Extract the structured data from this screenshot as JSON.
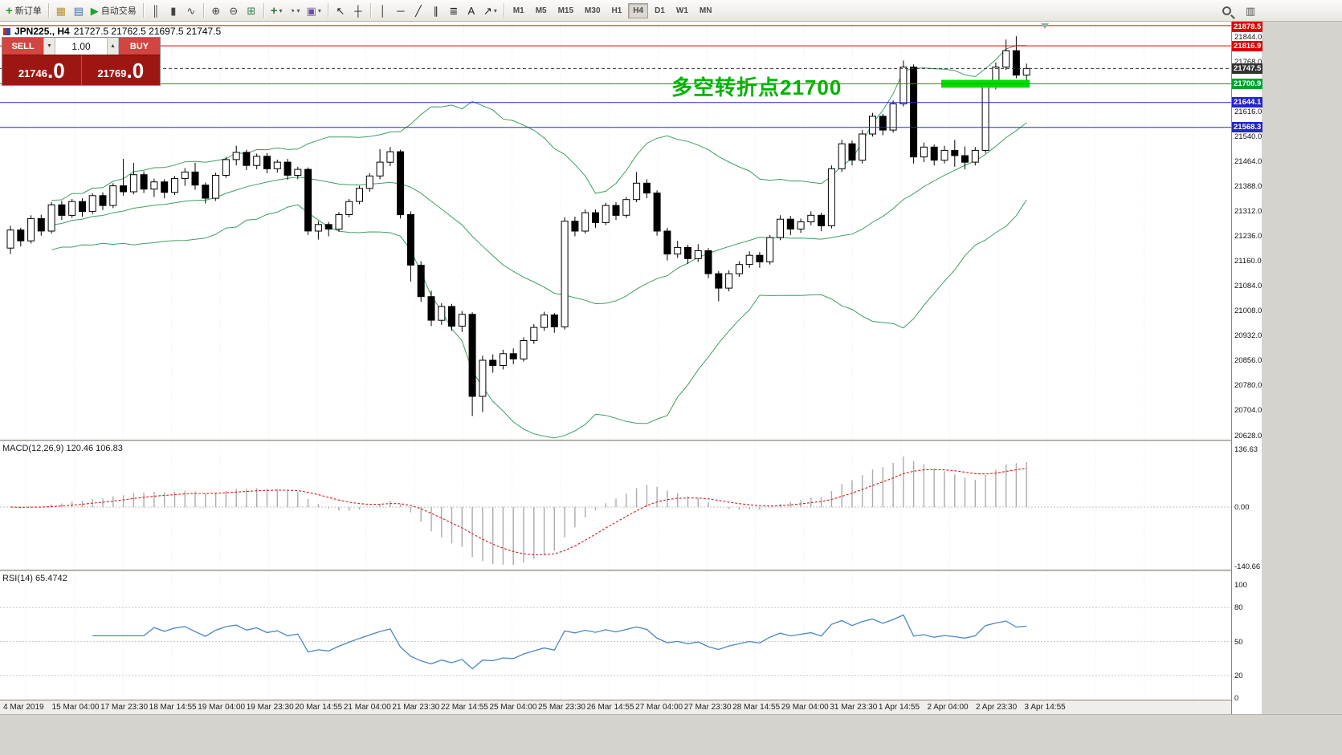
{
  "toolbar": {
    "dropdown_glyph": "▾",
    "left_groups": [
      [
        {
          "name": "new-order-button",
          "glyph": "+",
          "color": "#1fa32e",
          "label": "新订单"
        }
      ],
      [
        {
          "name": "charts-window-button",
          "glyph": "▦",
          "color": "#b8912a"
        },
        {
          "name": "data-window-button",
          "glyph": "▤",
          "color": "#3b6fb5"
        },
        {
          "name": "autotrading-button",
          "glyph": "▶",
          "color": "#1fa32e",
          "label": "自动交易"
        }
      ],
      [
        {
          "name": "bar-chart-type-button",
          "glyph": "║",
          "color": "#444"
        },
        {
          "name": "candlestick-type-button",
          "glyph": "▮",
          "color": "#444"
        },
        {
          "name": "line-chart-type-button",
          "glyph": "∿",
          "color": "#444"
        }
      ],
      [
        {
          "name": "zoom-in-button",
          "glyph": "⊕",
          "color": "#444"
        },
        {
          "name": "zoom-out-button",
          "glyph": "⊖",
          "color": "#444"
        },
        {
          "name": "tile-windows-button",
          "glyph": "⊞",
          "color": "#2a7f3f"
        }
      ],
      [
        {
          "name": "indicators-button",
          "glyph": "+",
          "color": "#2a7f3f",
          "dropdown": true
        },
        {
          "name": "periods-button",
          "glyph": "◔",
          "color": "#444",
          "dropdown": true
        },
        {
          "name": "templates-button",
          "glyph": "▣",
          "color": "#6a4fa0",
          "dropdown": true
        }
      ],
      [
        {
          "name": "cursor-button",
          "glyph": "↖",
          "color": "#222"
        },
        {
          "name": "crosshair-button",
          "glyph": "┼",
          "color": "#222"
        }
      ],
      [
        {
          "name": "vertical-line-button",
          "glyph": "│",
          "color": "#222"
        },
        {
          "name": "horizontal-line-button",
          "glyph": "─",
          "color": "#222"
        },
        {
          "name": "trendline-button",
          "glyph": "╱",
          "color": "#222"
        },
        {
          "name": "channel-button",
          "glyph": "∥",
          "color": "#222"
        },
        {
          "name": "fibonacci-button",
          "glyph": "≣",
          "color": "#222"
        },
        {
          "name": "text-label-button",
          "glyph": "A",
          "color": "#222"
        },
        {
          "name": "arrows-button",
          "glyph": "↗",
          "color": "#222",
          "dropdown": true
        }
      ]
    ],
    "timeframes": [
      {
        "label": "M1"
      },
      {
        "label": "M5"
      },
      {
        "label": "M15"
      },
      {
        "label": "M30"
      },
      {
        "label": "H1"
      },
      {
        "label": "H4",
        "active": true
      },
      {
        "label": "D1"
      },
      {
        "label": "W1"
      },
      {
        "label": "MN"
      }
    ],
    "right_items": [
      {
        "name": "search-button",
        "type": "mag"
      },
      {
        "name": "chart-pages-button",
        "glyph": "▥",
        "color": "#555"
      }
    ]
  },
  "title": {
    "symbol_period": "JPN225., H4",
    "ohlc": "21727.5 21762.5 21697.5 21747.5"
  },
  "trade_panel": {
    "sell_label": "SELL",
    "buy_label": "BUY",
    "volume": "1.00",
    "vol_down_glyph": "▼",
    "vol_up_glyph": "▲",
    "sell_price_small": "21746",
    "sell_price_big": ".0",
    "buy_price_small": "21769",
    "buy_price_big": ".0"
  },
  "macd": {
    "label": "MACD(12,26,9) 120.46 106.83",
    "axis": [
      {
        "text": "136.63",
        "value": 136.63
      },
      {
        "text": "0.00",
        "value": 0
      },
      {
        "text": "-140.66",
        "value": -140.66
      }
    ]
  },
  "rsi": {
    "label": "RSI(14) 65.4742",
    "levels": [
      80,
      50,
      20
    ],
    "axis": [
      {
        "text": "100",
        "value": 100
      },
      {
        "text": "80",
        "value": 80
      },
      {
        "text": "50",
        "value": 50
      },
      {
        "text": "20",
        "value": 20
      },
      {
        "text": "0",
        "value": 0
      }
    ]
  },
  "time_axis": {
    "labels": [
      "4 Mar 2019",
      "15 Mar 04:00",
      "17 Mar 23:30",
      "18 Mar 14:55",
      "19 Mar 04:00",
      "19 Mar 23:30",
      "20 Mar 14:55",
      "21 Mar 04:00",
      "21 Mar 23:30",
      "22 Mar 14:55",
      "25 Mar 04:00",
      "25 Mar 23:30",
      "26 Mar 14:55",
      "27 Mar 04:00",
      "27 Mar 23:30",
      "28 Mar 14:55",
      "29 Mar 04:00",
      "31 Mar 23:30",
      "1 Apr 14:55",
      "2 Apr 04:00",
      "2 Apr 23:30",
      "3 Apr 14:55"
    ]
  },
  "price_axis_ticks": [
    21844,
    21768,
    21616,
    21540,
    21464,
    21388,
    21312,
    21236,
    21160,
    21084,
    21008,
    20932,
    20856,
    20780,
    20704,
    20628
  ],
  "chart_data": {
    "type": "candlestick",
    "symbol": "JPN225",
    "timeframe": "H4",
    "last_ohlc": {
      "open": 21727.5,
      "high": 21762.5,
      "low": 21697.5,
      "close": 21747.5
    },
    "annotation": {
      "text": "多空转折点21700",
      "color": "#00b400"
    },
    "bollinger": {
      "period": 20,
      "deviation": 2,
      "color": "#3d9e63"
    },
    "hlines": [
      {
        "price": 21878.5,
        "label": "21878.5",
        "color": "#dd0000",
        "style": "solid"
      },
      {
        "price": 21816.9,
        "label": "21816.9",
        "color": "#dd0000",
        "style": "solid"
      },
      {
        "price": 21747.5,
        "label": "21747.5",
        "color": "#333333",
        "style": "dash"
      },
      {
        "price": 21700.9,
        "label": "21700.9",
        "color": "#00a22b",
        "style": "solid"
      },
      {
        "price": 21644.1,
        "label": "21644.1",
        "color": "#2525cf",
        "style": "solid"
      },
      {
        "price": 21568.3,
        "label": "21568.3",
        "color": "#2525cf",
        "style": "solid"
      }
    ],
    "highlight_zone": {
      "from_bar": 91,
      "to_bar": 99,
      "price_top": 21713,
      "price_bottom": 21689,
      "color": "#00dc00"
    },
    "candles": [
      [
        21200,
        21268,
        21182,
        21255
      ],
      [
        21255,
        21262,
        21205,
        21222
      ],
      [
        21222,
        21300,
        21214,
        21290
      ],
      [
        21290,
        21302,
        21238,
        21252
      ],
      [
        21252,
        21340,
        21244,
        21332
      ],
      [
        21332,
        21344,
        21286,
        21300
      ],
      [
        21300,
        21350,
        21292,
        21342
      ],
      [
        21342,
        21352,
        21296,
        21312
      ],
      [
        21312,
        21368,
        21304,
        21360
      ],
      [
        21360,
        21370,
        21316,
        21330
      ],
      [
        21330,
        21398,
        21322,
        21390
      ],
      [
        21390,
        21472,
        21360,
        21372
      ],
      [
        21372,
        21460,
        21364,
        21424
      ],
      [
        21424,
        21434,
        21368,
        21380
      ],
      [
        21380,
        21412,
        21356,
        21402
      ],
      [
        21402,
        21410,
        21352,
        21370
      ],
      [
        21370,
        21420,
        21362,
        21412
      ],
      [
        21412,
        21444,
        21390,
        21432
      ],
      [
        21432,
        21460,
        21378,
        21392
      ],
      [
        21392,
        21400,
        21336,
        21352
      ],
      [
        21352,
        21430,
        21344,
        21422
      ],
      [
        21422,
        21478,
        21414,
        21470
      ],
      [
        21470,
        21512,
        21452,
        21492
      ],
      [
        21492,
        21500,
        21438,
        21452
      ],
      [
        21452,
        21488,
        21440,
        21480
      ],
      [
        21480,
        21490,
        21428,
        21442
      ],
      [
        21442,
        21470,
        21430,
        21462
      ],
      [
        21462,
        21472,
        21408,
        21422
      ],
      [
        21422,
        21448,
        21410,
        21440
      ],
      [
        21440,
        21446,
        21240,
        21252
      ],
      [
        21252,
        21282,
        21226,
        21272
      ],
      [
        21272,
        21280,
        21236,
        21258
      ],
      [
        21258,
        21310,
        21250,
        21302
      ],
      [
        21302,
        21350,
        21294,
        21342
      ],
      [
        21342,
        21390,
        21334,
        21382
      ],
      [
        21382,
        21428,
        21372,
        21420
      ],
      [
        21420,
        21502,
        21410,
        21462
      ],
      [
        21462,
        21508,
        21450,
        21494
      ],
      [
        21494,
        21500,
        21290,
        21302
      ],
      [
        21302,
        21312,
        21098,
        21148
      ],
      [
        21148,
        21160,
        21036,
        21052
      ],
      [
        21052,
        21070,
        20962,
        20980
      ],
      [
        20980,
        21032,
        20966,
        21022
      ],
      [
        21022,
        21030,
        20948,
        20962
      ],
      [
        20962,
        21008,
        20944,
        20998
      ],
      [
        20998,
        21004,
        20688,
        20748
      ],
      [
        20748,
        20872,
        20700,
        20858
      ],
      [
        20858,
        20876,
        20820,
        20842
      ],
      [
        20842,
        20890,
        20830,
        20878
      ],
      [
        20878,
        20894,
        20846,
        20862
      ],
      [
        20862,
        20928,
        20854,
        20918
      ],
      [
        20918,
        20968,
        20908,
        20958
      ],
      [
        20958,
        21006,
        20948,
        20996
      ],
      [
        20996,
        21002,
        20942,
        20960
      ],
      [
        20960,
        21294,
        20952,
        21282
      ],
      [
        21282,
        21296,
        21236,
        21252
      ],
      [
        21252,
        21318,
        21244,
        21308
      ],
      [
        21308,
        21318,
        21262,
        21278
      ],
      [
        21278,
        21338,
        21270,
        21330
      ],
      [
        21330,
        21340,
        21286,
        21300
      ],
      [
        21300,
        21356,
        21292,
        21348
      ],
      [
        21348,
        21432,
        21340,
        21398
      ],
      [
        21398,
        21410,
        21352,
        21368
      ],
      [
        21368,
        21376,
        21238,
        21252
      ],
      [
        21252,
        21262,
        21162,
        21182
      ],
      [
        21182,
        21222,
        21170,
        21202
      ],
      [
        21202,
        21210,
        21152,
        21168
      ],
      [
        21168,
        21212,
        21158,
        21192
      ],
      [
        21192,
        21200,
        21108,
        21122
      ],
      [
        21122,
        21130,
        21038,
        21078
      ],
      [
        21078,
        21132,
        21068,
        21122
      ],
      [
        21122,
        21160,
        21112,
        21150
      ],
      [
        21150,
        21190,
        21140,
        21178
      ],
      [
        21178,
        21188,
        21140,
        21158
      ],
      [
        21158,
        21240,
        21150,
        21232
      ],
      [
        21232,
        21300,
        21224,
        21288
      ],
      [
        21288,
        21298,
        21240,
        21258
      ],
      [
        21258,
        21290,
        21246,
        21280
      ],
      [
        21280,
        21312,
        21270,
        21300
      ],
      [
        21300,
        21308,
        21252,
        21268
      ],
      [
        21268,
        21452,
        21260,
        21442
      ],
      [
        21442,
        21530,
        21432,
        21518
      ],
      [
        21518,
        21528,
        21452,
        21468
      ],
      [
        21468,
        21560,
        21458,
        21548
      ],
      [
        21548,
        21612,
        21540,
        21602
      ],
      [
        21602,
        21610,
        21544,
        21560
      ],
      [
        21560,
        21650,
        21552,
        21640
      ],
      [
        21640,
        21772,
        21632,
        21752
      ],
      [
        21752,
        21760,
        21458,
        21478
      ],
      [
        21478,
        21522,
        21462,
        21508
      ],
      [
        21508,
        21516,
        21452,
        21468
      ],
      [
        21468,
        21512,
        21458,
        21498
      ],
      [
        21498,
        21530,
        21448,
        21482
      ],
      [
        21482,
        21510,
        21440,
        21462
      ],
      [
        21462,
        21508,
        21452,
        21498
      ],
      [
        21498,
        21702,
        21490,
        21692
      ],
      [
        21692,
        21766,
        21684,
        21752
      ],
      [
        21752,
        21836,
        21744,
        21802
      ],
      [
        21802,
        21846,
        21718,
        21727.5
      ],
      [
        21727.5,
        21762.5,
        21697.5,
        21747.5
      ]
    ],
    "indicators": {
      "macd": {
        "fast": 12,
        "slow": 26,
        "signal": 9,
        "display_values": [
          120.46,
          106.83
        ]
      },
      "rsi": {
        "period": 14,
        "display_value": 65.4742
      }
    }
  }
}
